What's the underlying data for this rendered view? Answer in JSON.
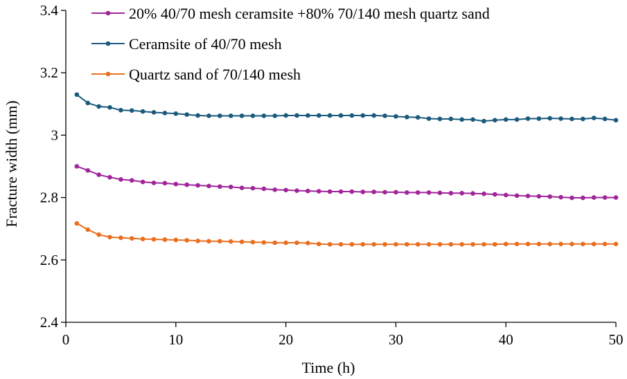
{
  "chart_data": {
    "type": "line",
    "title": "",
    "xlabel": "Time (h)",
    "ylabel": "Fracture width (mm)",
    "xlim": [
      0,
      50
    ],
    "ylim": [
      2.4,
      3.4
    ],
    "xticks": [
      0,
      10,
      20,
      30,
      40,
      50
    ],
    "yticks": [
      2.4,
      2.6,
      2.8,
      3,
      3.2,
      3.4
    ],
    "xtick_labels": [
      "0",
      "10",
      "20",
      "30",
      "40",
      "50"
    ],
    "ytick_labels": [
      "2.4",
      "2.6",
      "2.8",
      "3",
      "3.2",
      "3.4"
    ],
    "grid": false,
    "legend_position": "top-left",
    "x": [
      1,
      2,
      3,
      4,
      5,
      6,
      7,
      8,
      9,
      10,
      11,
      12,
      13,
      14,
      15,
      16,
      17,
      18,
      19,
      20,
      21,
      22,
      23,
      24,
      25,
      26,
      27,
      28,
      29,
      30,
      31,
      32,
      33,
      34,
      35,
      36,
      37,
      38,
      39,
      40,
      41,
      42,
      43,
      44,
      45,
      46,
      47,
      48,
      49,
      50
    ],
    "series": [
      {
        "name": "20% 40/70 mesh ceramsite +80% 70/140 mesh quartz sand",
        "color": "#a0249a",
        "values": [
          2.9,
          2.887,
          2.873,
          2.865,
          2.858,
          2.855,
          2.85,
          2.847,
          2.846,
          2.843,
          2.841,
          2.839,
          2.837,
          2.835,
          2.834,
          2.831,
          2.83,
          2.828,
          2.825,
          2.824,
          2.822,
          2.821,
          2.82,
          2.819,
          2.819,
          2.819,
          2.818,
          2.818,
          2.817,
          2.817,
          2.816,
          2.816,
          2.816,
          2.815,
          2.814,
          2.814,
          2.813,
          2.812,
          2.81,
          2.808,
          2.806,
          2.805,
          2.804,
          2.803,
          2.801,
          2.799,
          2.799,
          2.8,
          2.8,
          2.8
        ]
      },
      {
        "name": "Ceramsite of  40/70 mesh",
        "color": "#1b5a7c",
        "values": [
          3.13,
          3.103,
          3.092,
          3.089,
          3.08,
          3.079,
          3.076,
          3.073,
          3.071,
          3.069,
          3.066,
          3.063,
          3.062,
          3.062,
          3.062,
          3.062,
          3.062,
          3.062,
          3.062,
          3.063,
          3.063,
          3.063,
          3.063,
          3.063,
          3.063,
          3.063,
          3.063,
          3.063,
          3.062,
          3.06,
          3.058,
          3.057,
          3.053,
          3.052,
          3.052,
          3.05,
          3.05,
          3.045,
          3.048,
          3.05,
          3.05,
          3.053,
          3.053,
          3.054,
          3.053,
          3.052,
          3.052,
          3.055,
          3.052,
          3.048
        ]
      },
      {
        "name": "Quartz sand of 70/140 mesh",
        "color": "#e96f20",
        "values": [
          2.717,
          2.697,
          2.681,
          2.673,
          2.671,
          2.669,
          2.667,
          2.666,
          2.665,
          2.664,
          2.663,
          2.661,
          2.66,
          2.66,
          2.659,
          2.658,
          2.657,
          2.656,
          2.655,
          2.655,
          2.655,
          2.654,
          2.651,
          2.65,
          2.65,
          2.65,
          2.65,
          2.65,
          2.65,
          2.65,
          2.65,
          2.65,
          2.65,
          2.65,
          2.65,
          2.65,
          2.65,
          2.65,
          2.65,
          2.651,
          2.651,
          2.651,
          2.651,
          2.651,
          2.651,
          2.651,
          2.651,
          2.651,
          2.651,
          2.651
        ]
      }
    ]
  }
}
